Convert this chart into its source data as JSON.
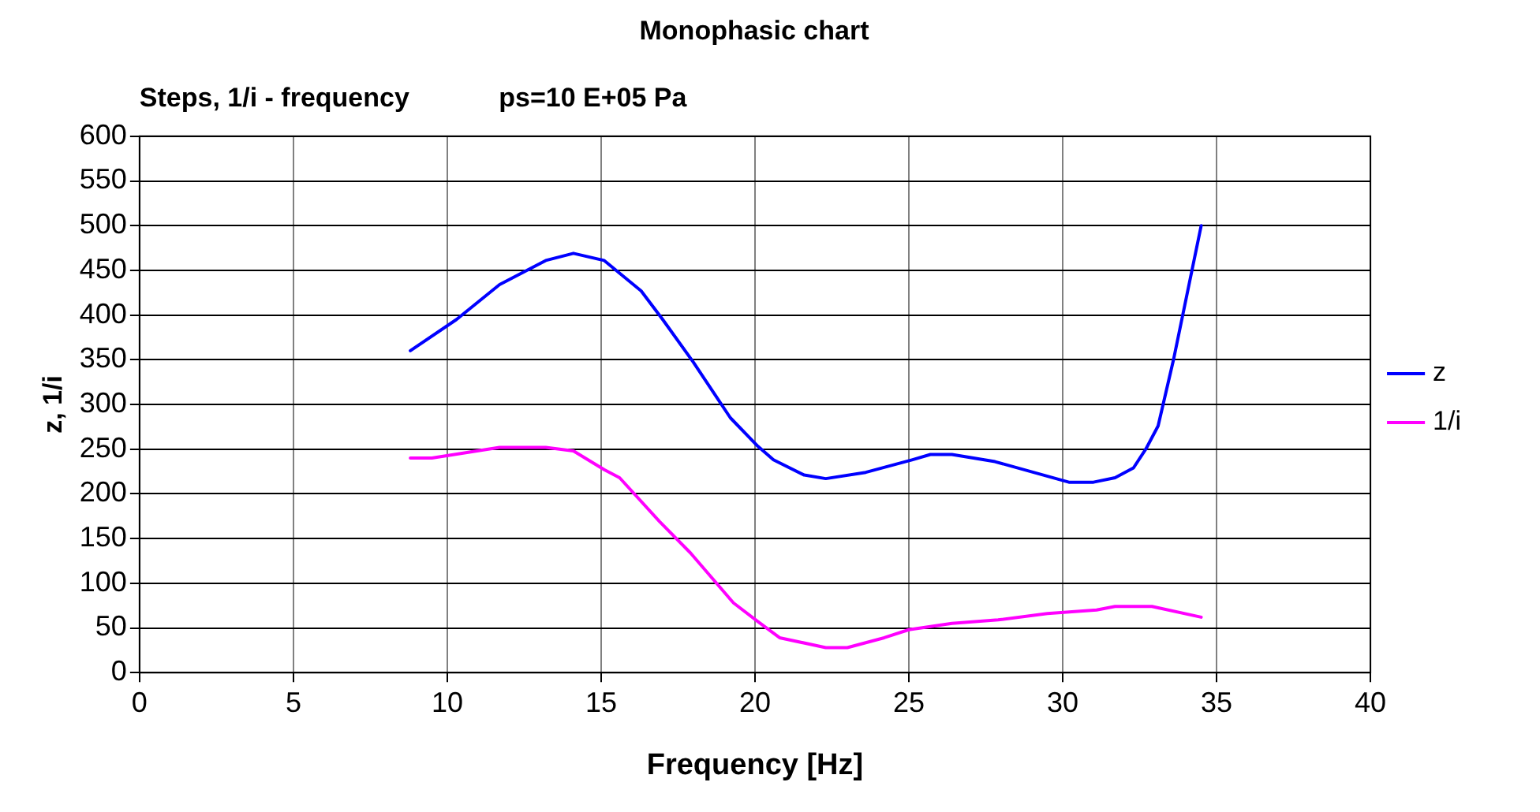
{
  "chart_data": {
    "type": "line",
    "title": "Monophasic chart",
    "subtitle": "Steps, 1/i - frequency            ps=10 E+05 Pa",
    "xlabel": "Frequency [Hz]",
    "ylabel": "z, 1/i",
    "xlim": [
      0,
      40
    ],
    "xticks": [
      0,
      5,
      10,
      15,
      20,
      25,
      30,
      35,
      40
    ],
    "ylim": [
      0,
      600
    ],
    "yticks": [
      0,
      50,
      100,
      150,
      200,
      250,
      300,
      350,
      400,
      450,
      500,
      550,
      600
    ],
    "grid": true,
    "legend": "right",
    "marker": "none",
    "line_style": "solid",
    "series": [
      {
        "name": "z",
        "color": "#0000ff",
        "x": [
          8.8,
          10.3,
          11.7,
          13.2,
          14.1,
          15.1,
          16.3,
          17.0,
          18.0,
          19.2,
          20.1,
          20.6,
          21.6,
          22.3,
          23.6,
          25.1,
          25.7,
          26.4,
          27.8,
          30.2,
          31.0,
          31.7,
          32.3,
          32.7,
          33.1,
          33.6,
          34.5
        ],
        "values": [
          360,
          395,
          434,
          461,
          469,
          461,
          427,
          395,
          347,
          285,
          253,
          238,
          221,
          217,
          224,
          238,
          244,
          244,
          236,
          213,
          213,
          218,
          229,
          250,
          276,
          350,
          500
        ]
      },
      {
        "name": "1/i",
        "color": "#ff00ff",
        "x": [
          8.8,
          9.5,
          11.7,
          13.2,
          14.1,
          15.1,
          15.6,
          16.9,
          17.9,
          19.3,
          20.1,
          20.8,
          22.3,
          23.0,
          24.2,
          25.0,
          26.4,
          27.9,
          29.5,
          31.1,
          31.7,
          32.9,
          34.5
        ],
        "values": [
          240,
          240,
          252,
          252,
          248,
          227,
          218,
          169,
          134,
          78,
          57,
          39,
          28,
          28,
          39,
          48,
          55,
          59,
          66,
          70,
          74,
          74,
          62
        ]
      }
    ]
  }
}
